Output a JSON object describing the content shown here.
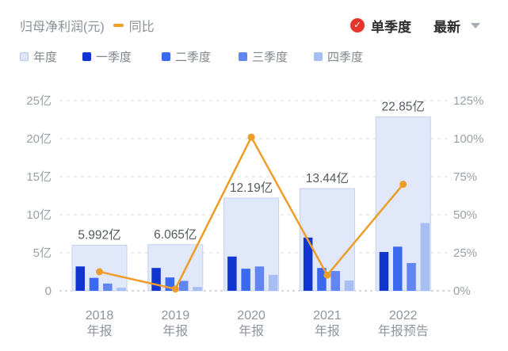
{
  "header": {
    "title": "归母净利润(元)",
    "line_legend": "同比",
    "single_quarter_label": "单季度",
    "latest_label": "最新"
  },
  "legend": [
    {
      "key": "annual",
      "label": "年度",
      "color": "#dce6f8",
      "border": "#b9c9ee"
    },
    {
      "key": "q1",
      "label": "一季度",
      "color": "#1135d0"
    },
    {
      "key": "q2",
      "label": "二季度",
      "color": "#3b69ef"
    },
    {
      "key": "q3",
      "label": "三季度",
      "color": "#6186ef"
    },
    {
      "key": "q4",
      "label": "四季度",
      "color": "#a7bef3"
    }
  ],
  "chart_data": {
    "type": "bar",
    "categories": [
      {
        "line1": "2018",
        "line2": "年报"
      },
      {
        "line1": "2019",
        "line2": "年报"
      },
      {
        "line1": "2020",
        "line2": "年报"
      },
      {
        "line1": "2021",
        "line2": "年报"
      },
      {
        "line1": "2022",
        "line2": "年报预告"
      }
    ],
    "series": [
      {
        "name": "年度",
        "values": [
          5.992,
          6.065,
          12.19,
          13.44,
          22.85
        ],
        "labels": [
          "5.992亿",
          "6.065亿",
          "12.19亿",
          "13.44亿",
          "22.85亿"
        ],
        "color": "#e0e8f9",
        "border": "#c2d1f1"
      },
      {
        "name": "一季度",
        "values": [
          3.2,
          3.0,
          4.5,
          7.0,
          5.1
        ],
        "color": "#1135d0"
      },
      {
        "name": "二季度",
        "values": [
          1.7,
          1.75,
          2.9,
          3.0,
          5.8
        ],
        "color": "#3b69ef"
      },
      {
        "name": "三季度",
        "values": [
          0.95,
          1.3,
          3.2,
          2.6,
          3.65
        ],
        "color": "#6186ef"
      },
      {
        "name": "四季度",
        "values": [
          0.4,
          0.5,
          2.1,
          1.35,
          8.9
        ],
        "color": "#a7bef3"
      }
    ],
    "line_series": {
      "name": "同比",
      "values_pct": [
        12.5,
        1.2,
        101.0,
        10.3,
        70.0
      ],
      "color": "#ee9d2b"
    },
    "left_axis": {
      "title": "亿",
      "ticks": [
        "25亿",
        "20亿",
        "15亿",
        "10亿",
        "5亿",
        "0"
      ],
      "max": 25,
      "min": 0
    },
    "right_axis": {
      "title": "%",
      "ticks": [
        "125%",
        "100%",
        "75%",
        "50%",
        "25%",
        "0%"
      ],
      "max": 125,
      "min": 0
    },
    "grid": "dashed-horizontal",
    "legend_position": "top-left"
  }
}
